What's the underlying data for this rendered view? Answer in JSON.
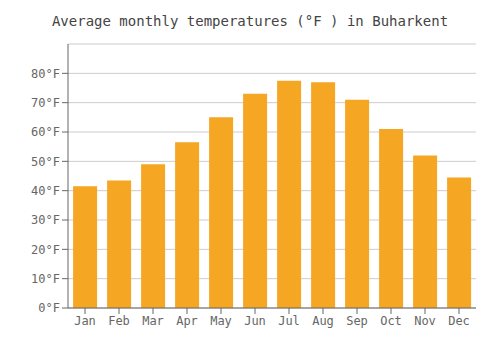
{
  "chart_data": {
    "type": "bar",
    "title": "Average monthly temperatures (°F ) in Buharkent",
    "categories": [
      "Jan",
      "Feb",
      "Mar",
      "Apr",
      "May",
      "Jun",
      "Jul",
      "Aug",
      "Sep",
      "Oct",
      "Nov",
      "Dec"
    ],
    "values": [
      41.5,
      43.5,
      49.0,
      56.5,
      65.0,
      73.0,
      77.5,
      77.0,
      71.0,
      61.0,
      52.0,
      44.5
    ],
    "color": "#F5A623",
    "ylim": [
      0,
      90
    ],
    "yticks": [
      {
        "value": 0,
        "label": "0°F"
      },
      {
        "value": 10,
        "label": "10°F"
      },
      {
        "value": 20,
        "label": "20°F"
      },
      {
        "value": 30,
        "label": "30°F"
      },
      {
        "value": 40,
        "label": "40°F"
      },
      {
        "value": 50,
        "label": "50°F"
      },
      {
        "value": 60,
        "label": "60°F"
      },
      {
        "value": 70,
        "label": "70°F"
      },
      {
        "value": 80,
        "label": "80°F"
      }
    ],
    "grid": true
  }
}
